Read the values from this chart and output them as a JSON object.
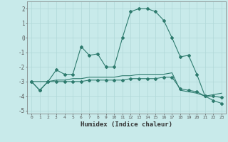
{
  "xlabel": "Humidex (Indice chaleur)",
  "background_color": "#c8eaea",
  "grid_color": "#b0d8d8",
  "line_color": "#2e7b6e",
  "x_values": [
    0,
    1,
    2,
    3,
    4,
    5,
    6,
    7,
    8,
    9,
    10,
    11,
    12,
    13,
    14,
    15,
    16,
    17,
    18,
    19,
    20,
    21,
    22,
    23
  ],
  "line1": [
    -3.0,
    -3.6,
    -3.0,
    -2.2,
    -2.5,
    -2.5,
    -0.6,
    -1.2,
    -1.1,
    -2.0,
    -2.0,
    0.0,
    1.8,
    2.0,
    2.0,
    1.8,
    1.2,
    0.0,
    -1.3,
    -1.2,
    -2.5,
    -4.0,
    -4.0,
    -4.1
  ],
  "line2": [
    -3.0,
    -3.6,
    -3.0,
    -3.0,
    -3.0,
    -3.0,
    -3.0,
    -2.9,
    -2.9,
    -2.9,
    -2.9,
    -2.9,
    -2.8,
    -2.8,
    -2.8,
    -2.8,
    -2.7,
    -2.7,
    -3.5,
    -3.6,
    -3.7,
    -4.0,
    -4.3,
    -4.5
  ],
  "line3": [
    -3.0,
    -3.0,
    -3.0,
    -2.9,
    -2.9,
    -2.8,
    -2.8,
    -2.7,
    -2.7,
    -2.7,
    -2.7,
    -2.6,
    -2.6,
    -2.5,
    -2.5,
    -2.5,
    -2.5,
    -2.4,
    -3.6,
    -3.7,
    -3.8,
    -4.0,
    -3.9,
    -3.8
  ],
  "ylim": [
    -5.2,
    2.5
  ],
  "yticks": [
    -5,
    -4,
    -3,
    -2,
    -1,
    0,
    1,
    2
  ],
  "xlim": [
    -0.5,
    23.5
  ]
}
